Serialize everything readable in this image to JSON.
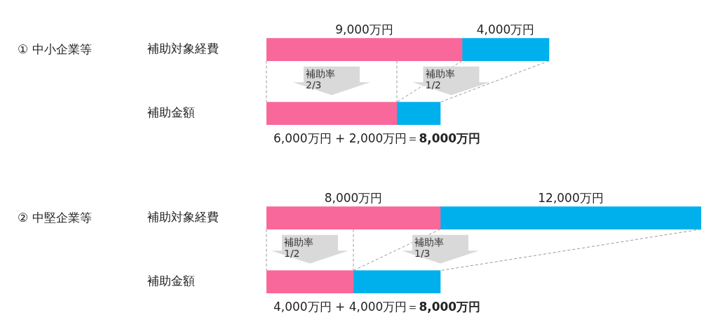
{
  "chart_data": [
    {
      "type": "bar",
      "title": "①  中小企業等",
      "orientation": "horizontal",
      "stacked": true,
      "categories": [
        "補助対象経費",
        "補助金額"
      ],
      "tick_labels": "y",
      "series": [
        {
          "color": "#f8689b",
          "values": [
            9000,
            6000
          ],
          "value_labels": [
            "9,000万円",
            null
          ]
        },
        {
          "color": "#00b0ec",
          "values": [
            4000,
            2000
          ],
          "value_labels": [
            "4,000万円",
            null
          ]
        }
      ],
      "annotations": [
        "補助率\n2/3",
        "補助率\n1/2",
        "6,000万円 + 2,000万円＝",
        "8,000万円"
      ]
    },
    {
      "type": "bar",
      "title": "②  中堅企業等",
      "orientation": "horizontal",
      "stacked": true,
      "categories": [
        "補助対象経費",
        "補助金額"
      ],
      "tick_labels": "y",
      "series": [
        {
          "color": "#f8689b",
          "values": [
            8000,
            4000
          ],
          "value_labels": [
            "8,000万円",
            null
          ]
        },
        {
          "color": "#00b0ec",
          "values": [
            12000,
            4000
          ],
          "value_labels": [
            "12,000万円",
            null
          ]
        }
      ],
      "annotations": [
        "補助率\n1/2",
        "補助率\n1/3",
        "4,000万円 + 4,000万円＝",
        "8,000万円"
      ]
    }
  ]
}
